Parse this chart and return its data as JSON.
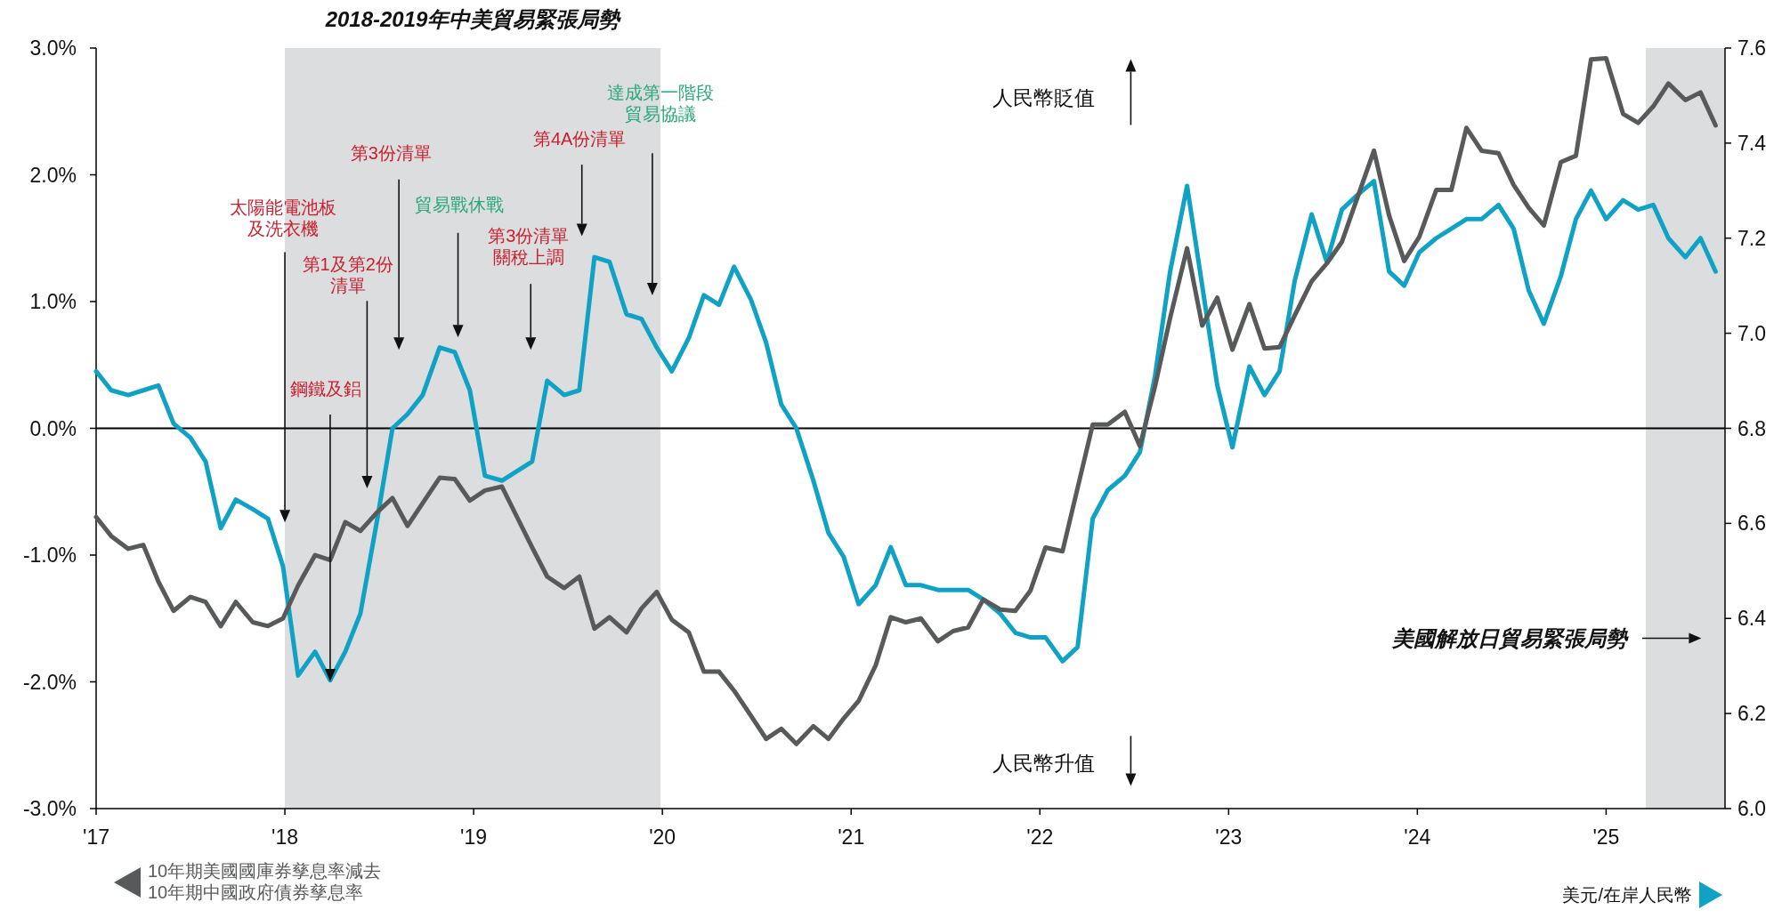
{
  "chart_data": {
    "type": "line",
    "x": [
      2017.0,
      2017.08,
      2017.17,
      2017.25,
      2017.33,
      2017.41,
      2017.5,
      2017.58,
      2017.66,
      2017.74,
      2017.83,
      2017.91,
      2017.99,
      2018.07,
      2018.16,
      2018.24,
      2018.32,
      2018.4,
      2018.49,
      2018.57,
      2018.65,
      2018.73,
      2018.82,
      2018.9,
      2018.98,
      2019.06,
      2019.15,
      2019.23,
      2019.31,
      2019.39,
      2019.48,
      2019.56,
      2019.64,
      2019.72,
      2019.81,
      2019.89,
      2019.97,
      2020.05,
      2020.14,
      2020.22,
      2020.3,
      2020.38,
      2020.47,
      2020.55,
      2020.63,
      2020.71,
      2020.8,
      2020.88,
      2020.96,
      2021.04,
      2021.13,
      2021.21,
      2021.29,
      2021.37,
      2021.46,
      2021.54,
      2021.62,
      2021.7,
      2021.79,
      2021.87,
      2021.95,
      2022.03,
      2022.12,
      2022.2,
      2022.28,
      2022.36,
      2022.45,
      2022.53,
      2022.61,
      2022.69,
      2022.78,
      2022.86,
      2022.94,
      2023.02,
      2023.11,
      2023.19,
      2023.27,
      2023.35,
      2023.44,
      2023.52,
      2023.6,
      2023.68,
      2023.77,
      2023.85,
      2023.93,
      2024.01,
      2024.1,
      2024.18,
      2024.26,
      2024.34,
      2024.43,
      2024.51,
      2024.59,
      2024.67,
      2024.76,
      2024.84,
      2024.92,
      2025.0,
      2025.09,
      2025.17,
      2025.25,
      2025.33,
      2025.42,
      2025.5,
      2025.58
    ],
    "series": [
      {
        "name": "10年期美國國庫券孳息率減去\n10年期中國政府債券孳息率",
        "color": "#58595b",
        "axis": "y",
        "values": [
          -0.7,
          -0.85,
          -0.95,
          -0.92,
          -1.21,
          -1.44,
          -1.33,
          -1.37,
          -1.56,
          -1.37,
          -1.53,
          -1.56,
          -1.5,
          -1.24,
          -1.0,
          -1.04,
          -0.74,
          -0.81,
          -0.66,
          -0.55,
          -0.77,
          -0.59,
          -0.39,
          -0.4,
          -0.57,
          -0.49,
          -0.46,
          -0.7,
          -0.94,
          -1.17,
          -1.26,
          -1.17,
          -1.58,
          -1.49,
          -1.61,
          -1.42,
          -1.29,
          -1.51,
          -1.61,
          -1.92,
          -1.92,
          -2.07,
          -2.27,
          -2.45,
          -2.37,
          -2.49,
          -2.35,
          -2.45,
          -2.29,
          -2.15,
          -1.87,
          -1.49,
          -1.53,
          -1.5,
          -1.68,
          -1.6,
          -1.57,
          -1.35,
          -1.43,
          -1.44,
          -1.28,
          -0.94,
          -0.97,
          -0.47,
          0.03,
          0.03,
          0.13,
          -0.14,
          0.33,
          0.87,
          1.42,
          0.81,
          1.03,
          0.62,
          0.98,
          0.63,
          0.64,
          0.89,
          1.16,
          1.3,
          1.47,
          1.81,
          2.19,
          1.68,
          1.32,
          1.51,
          1.88,
          1.88,
          2.37,
          2.19,
          2.17,
          1.92,
          1.74,
          1.6,
          2.1,
          2.15,
          2.91,
          2.92,
          2.48,
          2.41,
          2.54,
          2.72,
          2.59,
          2.65,
          2.39
        ]
      },
      {
        "name": "美元/在岸人民幣",
        "color": "#0fa2c5",
        "axis": "y2",
        "values": [
          6.92,
          6.88,
          6.87,
          6.88,
          6.89,
          6.81,
          6.78,
          6.73,
          6.59,
          6.65,
          6.63,
          6.61,
          6.51,
          6.28,
          6.33,
          6.27,
          6.33,
          6.41,
          6.61,
          6.8,
          6.83,
          6.87,
          6.97,
          6.96,
          6.88,
          6.7,
          6.69,
          6.71,
          6.73,
          6.9,
          6.87,
          6.88,
          7.16,
          7.15,
          7.04,
          7.03,
          6.97,
          6.92,
          6.99,
          7.08,
          7.06,
          7.14,
          7.07,
          6.98,
          6.85,
          6.8,
          6.69,
          6.58,
          6.53,
          6.43,
          6.47,
          6.55,
          6.47,
          6.47,
          6.46,
          6.46,
          6.46,
          6.44,
          6.41,
          6.37,
          6.36,
          6.36,
          6.31,
          6.34,
          6.61,
          6.67,
          6.7,
          6.75,
          6.91,
          7.13,
          7.31,
          7.1,
          6.89,
          6.76,
          6.93,
          6.87,
          6.92,
          7.11,
          7.25,
          7.15,
          7.26,
          7.29,
          7.32,
          7.13,
          7.1,
          7.17,
          7.2,
          7.22,
          7.24,
          7.24,
          7.27,
          7.22,
          7.09,
          7.02,
          7.12,
          7.24,
          7.3,
          7.24,
          7.28,
          7.26,
          7.27,
          7.2,
          7.16,
          7.2,
          7.13
        ]
      }
    ],
    "xlim": [
      2017,
      2025.63
    ],
    "xticks": [
      {
        "value": 2017,
        "label": "'17"
      },
      {
        "value": 2018,
        "label": "'18"
      },
      {
        "value": 2019,
        "label": "'19"
      },
      {
        "value": 2020,
        "label": "'20"
      },
      {
        "value": 2021,
        "label": "'21"
      },
      {
        "value": 2022,
        "label": "'22"
      },
      {
        "value": 2023,
        "label": "'23"
      },
      {
        "value": 2024,
        "label": "'24"
      },
      {
        "value": 2025,
        "label": "'25"
      }
    ],
    "ylim": [
      -3,
      3
    ],
    "yticks": [
      {
        "value": -3,
        "label": "-3.0%"
      },
      {
        "value": -2,
        "label": "-2.0%"
      },
      {
        "value": -1,
        "label": "-1.0%"
      },
      {
        "value": 0,
        "label": "0.0%"
      },
      {
        "value": 1,
        "label": "1.0%"
      },
      {
        "value": 2,
        "label": "2.0%"
      },
      {
        "value": 3,
        "label": "3.0%"
      }
    ],
    "y2lim": [
      6.0,
      7.6
    ],
    "y2ticks": [
      {
        "value": 6.0,
        "label": "6.0"
      },
      {
        "value": 6.2,
        "label": "6.2"
      },
      {
        "value": 6.4,
        "label": "6.4"
      },
      {
        "value": 6.6,
        "label": "6.6"
      },
      {
        "value": 6.8,
        "label": "6.8"
      },
      {
        "value": 7.0,
        "label": "7.0"
      },
      {
        "value": 7.2,
        "label": "7.2"
      },
      {
        "value": 7.4,
        "label": "7.4"
      },
      {
        "value": 7.6,
        "label": "7.6"
      }
    ],
    "ref_lines": [
      {
        "axis": "y",
        "value": 0,
        "color": "#000000"
      }
    ],
    "bands": [
      {
        "axis": "x",
        "from": 2018,
        "to": 2019.99,
        "label": "2018-2019年中美貿易緊張局勢",
        "color": "#dcdddf"
      },
      {
        "axis": "x",
        "from": 2025.21,
        "to": 2025.63,
        "label": "美國解放日貿易緊張局勢",
        "color": "#dcdddf"
      }
    ],
    "annotations": [
      {
        "text": "太陽能電池板及洗衣機",
        "x": 2018.0
      },
      {
        "text": "鋼鐵及鋁",
        "x": 2018.24
      },
      "第1及第2份清單",
      "第3份清單",
      "貿易戰休戰",
      "第3份清單關稅上調",
      "第4A份清單",
      "達成第一階段貿易協議",
      "人民幣貶值",
      "人民幣升值"
    ],
    "legend": "bottom",
    "grid": false,
    "line_style": "solid",
    "marker": "none"
  }
}
